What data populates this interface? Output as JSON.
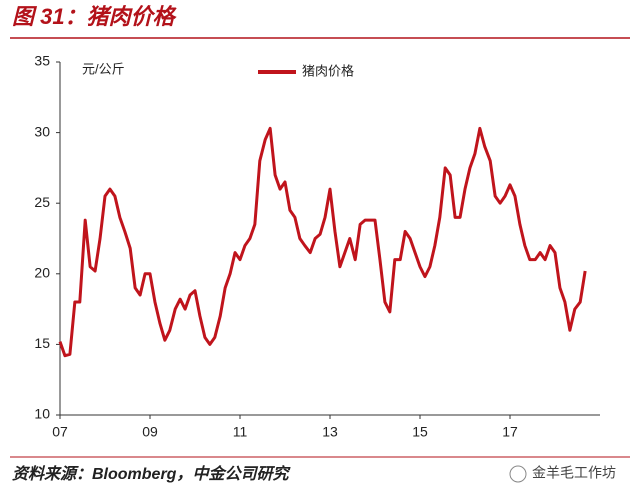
{
  "chart_data": {
    "type": "line",
    "title": "图 31：猪肉价格",
    "y_label": "元/公斤",
    "source": "资料来源：Bloomberg，中金公司研究",
    "watermark": "金羊毛工作坊",
    "xlim": [
      2007,
      2019
    ],
    "ylim": [
      10,
      35
    ],
    "xticks": [
      {
        "value": 2007,
        "label": "07"
      },
      {
        "value": 2009,
        "label": "09"
      },
      {
        "value": 2011,
        "label": "11"
      },
      {
        "value": 2013,
        "label": "13"
      },
      {
        "value": 2015,
        "label": "15"
      },
      {
        "value": 2017,
        "label": "17"
      }
    ],
    "yticks": [
      10,
      15,
      20,
      25,
      30,
      35
    ],
    "x": [
      2007.0,
      2007.11,
      2007.22,
      2007.33,
      2007.44,
      2007.56,
      2007.67,
      2007.78,
      2007.89,
      2008.0,
      2008.11,
      2008.22,
      2008.33,
      2008.44,
      2008.56,
      2008.67,
      2008.78,
      2008.89,
      2009.0,
      2009.11,
      2009.22,
      2009.33,
      2009.44,
      2009.56,
      2009.67,
      2009.78,
      2009.89,
      2010.0,
      2010.11,
      2010.22,
      2010.33,
      2010.44,
      2010.56,
      2010.67,
      2010.78,
      2010.89,
      2011.0,
      2011.11,
      2011.22,
      2011.33,
      2011.44,
      2011.56,
      2011.67,
      2011.78,
      2011.89,
      2012.0,
      2012.11,
      2012.22,
      2012.33,
      2012.44,
      2012.56,
      2012.67,
      2012.78,
      2012.89,
      2013.0,
      2013.11,
      2013.22,
      2013.33,
      2013.44,
      2013.56,
      2013.67,
      2013.78,
      2013.89,
      2014.0,
      2014.11,
      2014.22,
      2014.33,
      2014.44,
      2014.56,
      2014.67,
      2014.78,
      2014.89,
      2015.0,
      2015.11,
      2015.22,
      2015.33,
      2015.44,
      2015.56,
      2015.67,
      2015.78,
      2015.89,
      2016.0,
      2016.11,
      2016.22,
      2016.33,
      2016.44,
      2016.56,
      2016.67,
      2016.78,
      2016.89,
      2017.0,
      2017.11,
      2017.22,
      2017.33,
      2017.44,
      2017.56,
      2017.67,
      2017.78,
      2017.89,
      2018.0,
      2018.11,
      2018.22,
      2018.33,
      2018.44,
      2018.56,
      2018.67
    ],
    "series": [
      {
        "name": "猪肉价格",
        "color": "#c0141c",
        "values": [
          15.2,
          14.2,
          14.3,
          18,
          18,
          23.8,
          20.5,
          20.2,
          22.5,
          25.5,
          26,
          25.5,
          24,
          23,
          21.8,
          19,
          18.5,
          20,
          20,
          18,
          16.5,
          15.3,
          16,
          17.5,
          18.2,
          17.5,
          18.5,
          18.8,
          17,
          15.5,
          15,
          15.5,
          17,
          19,
          20,
          21.5,
          21,
          22,
          22.5,
          23.5,
          28,
          29.5,
          30.3,
          27,
          26,
          26.5,
          24.5,
          24,
          22.5,
          22,
          21.5,
          22.5,
          22.8,
          24,
          26,
          23,
          20.5,
          21.5,
          22.5,
          21,
          23.5,
          23.8,
          23.8,
          23.8,
          21,
          18,
          17.3,
          21,
          21,
          23,
          22.5,
          21.5,
          20.5,
          19.8,
          20.5,
          22,
          24,
          27.5,
          27,
          24,
          24,
          26,
          27.5,
          28.5,
          30.3,
          29,
          28,
          25.5,
          25,
          25.5,
          26.3,
          25.5,
          23.5,
          22,
          21,
          21,
          21.5,
          21,
          22,
          21.5,
          19,
          18,
          16,
          17.5,
          18,
          20.2
        ]
      }
    ]
  }
}
